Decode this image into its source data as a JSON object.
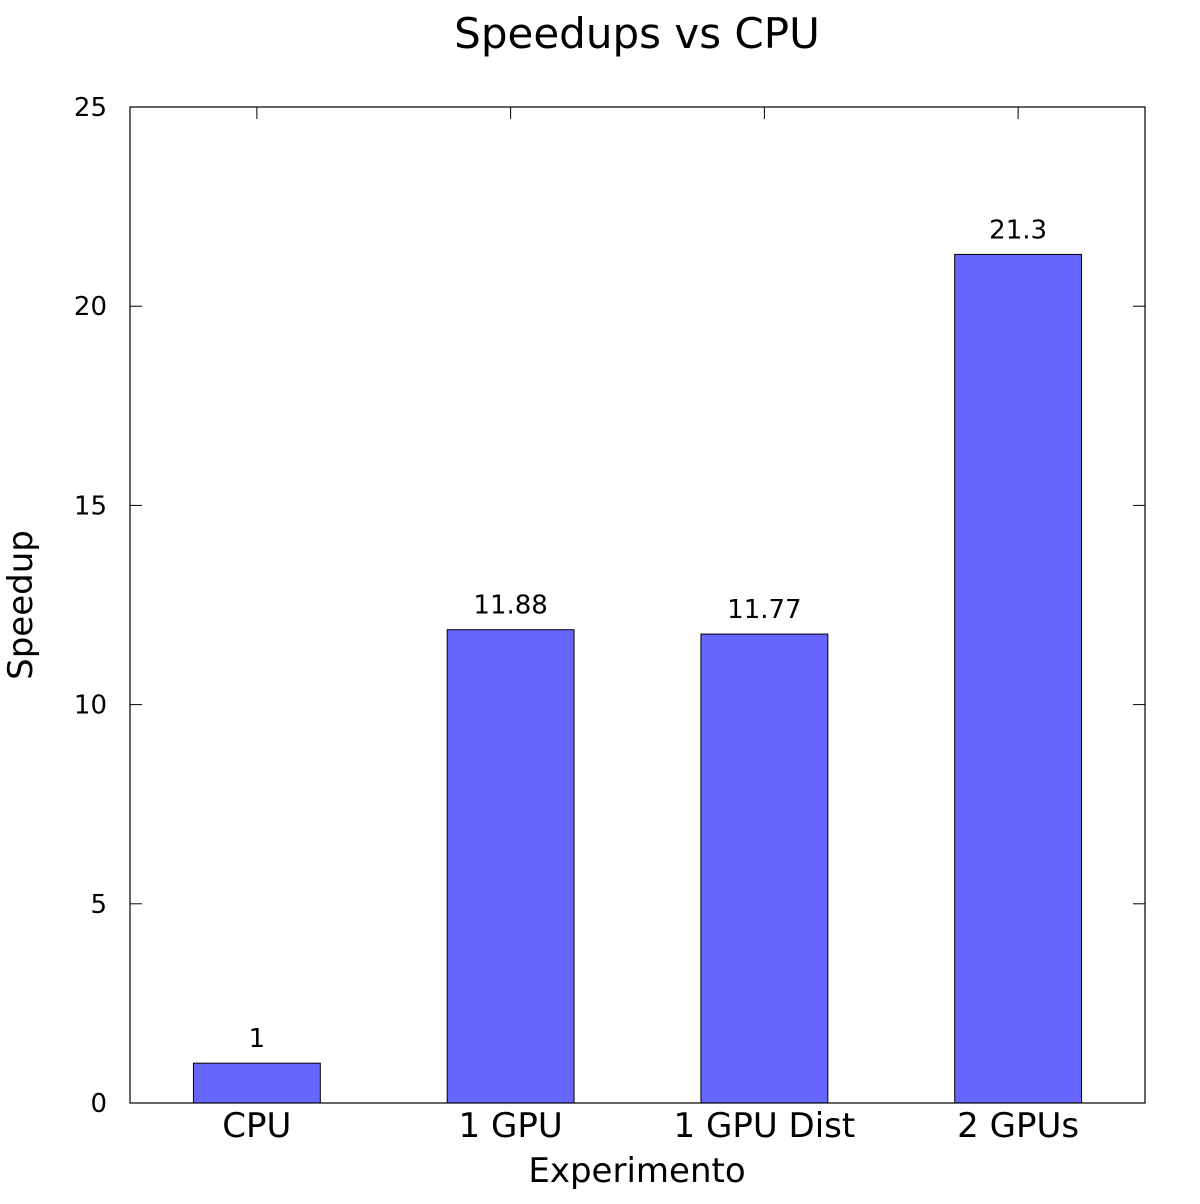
{
  "chart_data": {
    "type": "bar",
    "title": "Speedups vs CPU",
    "xlabel": "Experimento",
    "ylabel": "Speedup",
    "categories": [
      "CPU",
      "1 GPU",
      "1 GPU Dist",
      "2 GPUs"
    ],
    "values": [
      1,
      11.88,
      11.77,
      21.3
    ],
    "data_labels": [
      "1",
      "11.88",
      "11.77",
      "21.3"
    ],
    "ylim": [
      0,
      25
    ],
    "yticks": [
      0,
      5,
      10,
      15,
      20,
      25
    ],
    "ytick_labels": [
      "0",
      "5",
      "10",
      "15",
      "20",
      "25"
    ],
    "grid": false,
    "legend": "none",
    "bar_color": "#6666ff",
    "bar_edge_color": "#000000"
  }
}
